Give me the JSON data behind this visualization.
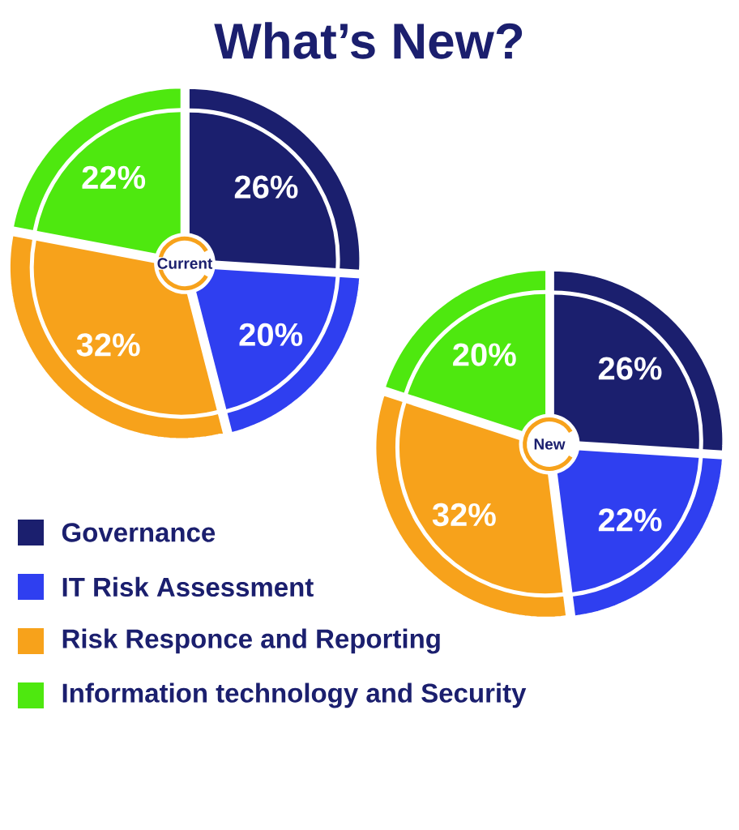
{
  "chart_data": [
    {
      "type": "pie",
      "title": "What’s New?",
      "subtitle": "Current",
      "legend": "bottom right",
      "categories": [
        "Governance",
        "IT Risk Assessment",
        "Risk Responce and Reporting",
        "Information technology and Security"
      ],
      "values": [
        26,
        20,
        32,
        22
      ],
      "value_labels": [
        "26%",
        "20%",
        "32%",
        "22%"
      ],
      "colors": [
        "#1b1f6e",
        "#2f3ff0",
        "#f7a21b",
        "#4ee80f"
      ]
    },
    {
      "type": "pie",
      "subtitle": "New",
      "categories": [
        null,
        null,
        null,
        null
      ],
      "values": [
        26,
        22,
        32,
        20
      ],
      "value_labels": [
        "26%",
        "22%",
        "32%",
        "20%"
      ],
      "colors": [
        "#1b1f6e",
        "#2f3ff0",
        "#f7a21b",
        "#4ee80f"
      ]
    }
  ]
}
